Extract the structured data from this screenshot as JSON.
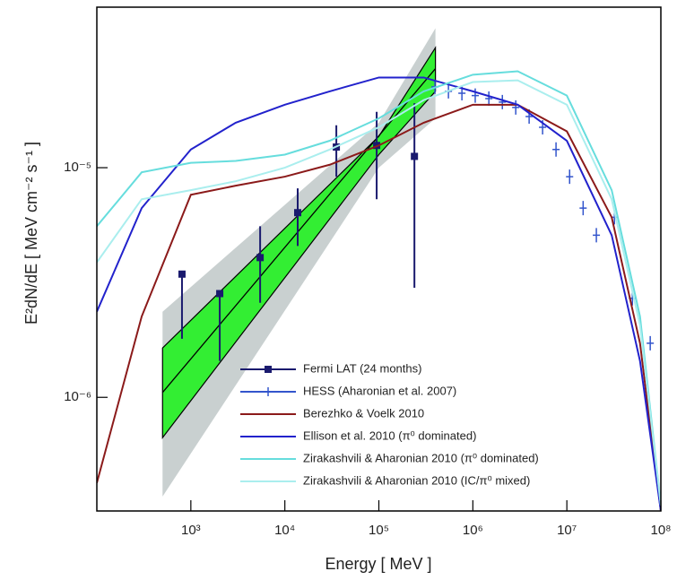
{
  "chart_data": {
    "type": "line",
    "xlabel": "Energy [ MeV ]",
    "ylabel": "E²dN/dE [ MeV cm⁻² s⁻¹ ]",
    "xscale": "log",
    "yscale": "log",
    "xlim": [
      100,
      100000000
    ],
    "ylim": [
      3.2e-07,
      5e-05
    ],
    "xticks": [
      {
        "value": 1000,
        "label": "10³"
      },
      {
        "value": 10000,
        "label": "10⁴"
      },
      {
        "value": 100000,
        "label": "10⁵"
      },
      {
        "value": 1000000,
        "label": "10⁶"
      },
      {
        "value": 10000000,
        "label": "10⁷"
      },
      {
        "value": 100000000,
        "label": "10⁸"
      }
    ],
    "yticks": [
      {
        "value": 1e-06,
        "label": "10⁻⁶"
      },
      {
        "value": 1e-05,
        "label": "10⁻⁵"
      }
    ],
    "legend": "lower center",
    "bands": [
      {
        "color": "#c9d0d0",
        "x": [
          500,
          100000,
          400000
        ],
        "lower": [
          3.7e-07,
          1e-05,
          1.64e-05
        ],
        "upper": [
          2.36e-06,
          1.57e-05,
          4.05e-05
        ]
      },
      {
        "color": "#33ee33",
        "x": [
          500,
          100000,
          400000
        ],
        "lower": [
          6.67e-07,
          1.14e-05,
          2.15e-05
        ],
        "upper": [
          1.64e-06,
          1.37e-05,
          3.33e-05
        ]
      }
    ],
    "fit": {
      "color": "#000000",
      "x": [
        500,
        400000
      ],
      "values": [
        1.05e-06,
        2.7e-05
      ]
    },
    "series": [
      {
        "name": "Fermi LAT (24 months)",
        "color": "#1a1a6e",
        "kind": "points",
        "x": [
          805,
          2030,
          5460,
          13700,
          35300,
          94800,
          239000
        ],
        "values": [
          3.44e-06,
          2.83e-06,
          4.06e-06,
          6.37e-06,
          1.23e-05,
          1.25e-05,
          1.12e-05
        ],
        "lo": [
          1.8e-06,
          1.44e-06,
          2.58e-06,
          4.56e-06,
          9.14e-06,
          7.29e-06,
          3e-06
        ],
        "hi": [
          3.44e-06,
          2.83e-06,
          5.56e-06,
          8.13e-06,
          1.53e-05,
          1.75e-05,
          1.91e-05
        ]
      },
      {
        "name": "HESS (Aharonian et al. 2007)",
        "color": "#3355cc",
        "kind": "markers",
        "x": [
          395000,
          550000,
          765000,
          1060000,
          1480000,
          2060000,
          2860000,
          3970000,
          5520000,
          7670000,
          10700000,
          14900000,
          20600000,
          32100000,
          49800000,
          77100000
        ],
        "values": [
          2.25e-05,
          2.15e-05,
          2.11e-05,
          2.06e-05,
          2e-05,
          1.93e-05,
          1.83e-05,
          1.67e-05,
          1.5e-05,
          1.2e-05,
          9.14e-06,
          6.67e-06,
          5.08e-06,
          6.08e-06,
          2.7e-06,
          1.72e-06
        ]
      },
      {
        "name": "Berezhko & Voelk 2010",
        "color": "#8b1a1a",
        "kind": "line",
        "x": [
          100,
          300,
          1000,
          3000,
          10000,
          30000,
          100000,
          300000,
          1000000,
          3000000,
          10000000,
          30000000,
          60000000,
          100000000
        ],
        "values": [
          4.24e-07,
          2.25e-06,
          7.62e-06,
          8.35e-06,
          9.14e-06,
          1.03e-05,
          1.25e-05,
          1.57e-05,
          1.88e-05,
          1.88e-05,
          1.44e-05,
          6.08e-06,
          1.72e-06,
          3.2e-07
        ]
      },
      {
        "name": "Ellison et al. 2010 (π⁰ dominated)",
        "color": "#2222cc",
        "kind": "line",
        "x": [
          100,
          300,
          1000,
          3000,
          10000,
          30000,
          100000,
          300000,
          1000000,
          3000000,
          10000000,
          30000000,
          60000000,
          100000000
        ],
        "values": [
          2.36e-06,
          6.67e-06,
          1.2e-05,
          1.57e-05,
          1.88e-05,
          2.15e-05,
          2.47e-05,
          2.47e-05,
          2.15e-05,
          1.88e-05,
          1.31e-05,
          5.08e-06,
          1.44e-06,
          3.2e-07
        ]
      },
      {
        "name": "Zirakashvili & Aharonian 2010 (π⁰ dominated)",
        "color": "#66dddd",
        "kind": "line",
        "x": [
          100,
          300,
          1000,
          3000,
          10000,
          30000,
          100000,
          300000,
          1000000,
          3000000,
          10000000,
          30000000,
          60000000,
          100000000
        ],
        "values": [
          5.56e-06,
          9.55e-06,
          1.05e-05,
          1.07e-05,
          1.14e-05,
          1.31e-05,
          1.64e-05,
          2.15e-05,
          2.54e-05,
          2.63e-05,
          2.06e-05,
          7.98e-06,
          2.25e-06,
          3.38e-07
        ]
      },
      {
        "name": "Zirakashvili & Aharonian 2010 (IC/π⁰ mixed)",
        "color": "#aaeeee",
        "kind": "line",
        "x": [
          100,
          300,
          1000,
          3000,
          10000,
          30000,
          100000,
          300000,
          1000000,
          3000000,
          10000000,
          30000000,
          60000000,
          100000000
        ],
        "values": [
          3.87e-06,
          7.29e-06,
          7.98e-06,
          8.73e-06,
          1e-05,
          1.2e-05,
          1.5e-05,
          1.97e-05,
          2.36e-05,
          2.4e-05,
          1.88e-05,
          7.29e-06,
          2.06e-06,
          3.38e-07
        ]
      }
    ]
  }
}
